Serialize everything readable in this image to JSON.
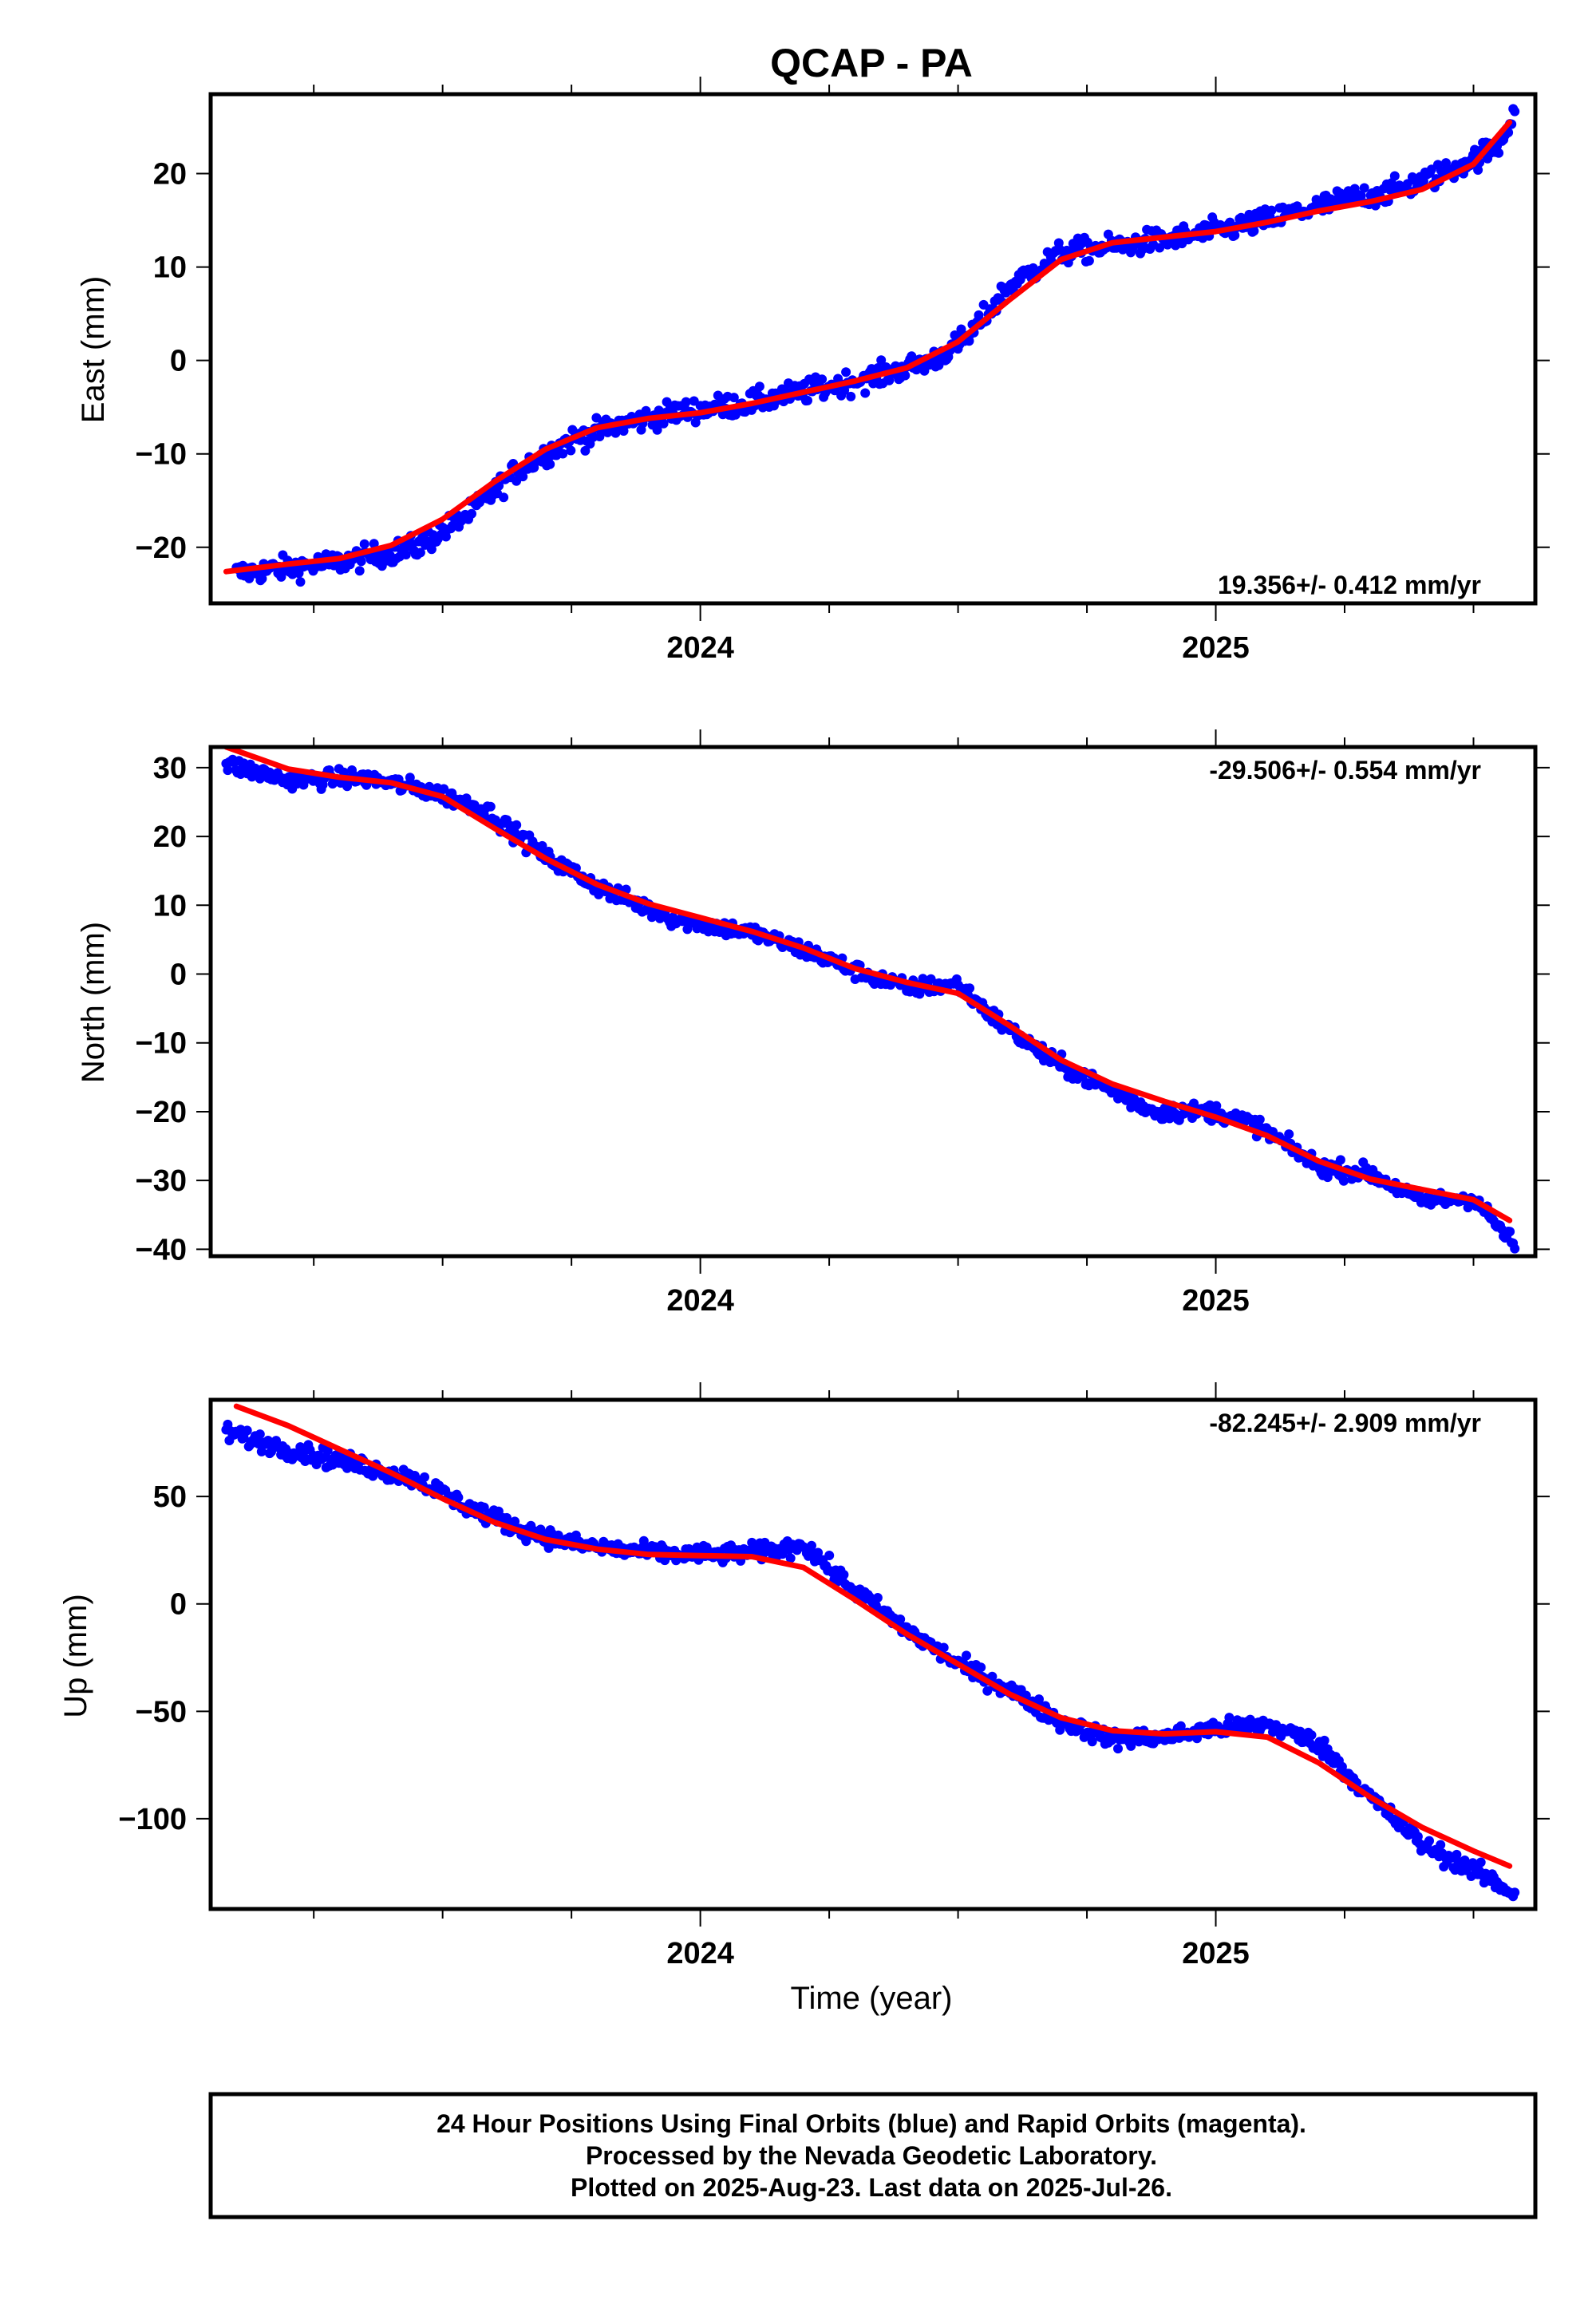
{
  "title": "QCAP - PA",
  "colors": {
    "final_orbits": "#0000ff",
    "trend": "#ff0000",
    "axes": "#000000"
  },
  "chart_data": [
    {
      "type": "scatter",
      "panel": "east",
      "ylabel": "East (mm)",
      "xlabel": "",
      "xlim": [
        2023.05,
        2025.62
      ],
      "ylim": [
        -26,
        28.5
      ],
      "x_ticks": [
        2024,
        2025
      ],
      "y_ticks": [
        -20,
        -10,
        0,
        10,
        20
      ],
      "grid": false,
      "rate_label": "19.356+/- 0.412 mm/yr",
      "rate_position": "bottom-right",
      "series": [
        {
          "name": "24 Hour Positions (final orbits)",
          "marker": "dot",
          "color": "#0000ff",
          "keypoints": [
            [
              2023.1,
              -22.8
            ],
            [
              2023.3,
              -21.6
            ],
            [
              2023.45,
              -20.0
            ],
            [
              2023.55,
              -16.5
            ],
            [
              2023.65,
              -11.5
            ],
            [
              2023.75,
              -8.5
            ],
            [
              2023.85,
              -6.8
            ],
            [
              2023.95,
              -5.6
            ],
            [
              2024.1,
              -4.5
            ],
            [
              2024.25,
              -2.8
            ],
            [
              2024.35,
              -1.6
            ],
            [
              2024.45,
              0.0
            ],
            [
              2024.52,
              2.5
            ],
            [
              2024.6,
              8.0
            ],
            [
              2024.7,
              11.5
            ],
            [
              2024.8,
              12.2
            ],
            [
              2024.95,
              13.3
            ],
            [
              2025.1,
              15.0
            ],
            [
              2025.25,
              17.2
            ],
            [
              2025.35,
              18.2
            ],
            [
              2025.45,
              20.2
            ],
            [
              2025.55,
              23.0
            ],
            [
              2025.58,
              27.0
            ]
          ],
          "noise_mm": 0.9,
          "count": 800
        },
        {
          "name": "trend",
          "type": "line",
          "color": "#ff0000",
          "points": [
            [
              2023.08,
              -22.6
            ],
            [
              2023.2,
              -21.8
            ],
            [
              2023.3,
              -21.2
            ],
            [
              2023.4,
              -19.8
            ],
            [
              2023.5,
              -17.0
            ],
            [
              2023.6,
              -13.0
            ],
            [
              2023.7,
              -9.5
            ],
            [
              2023.8,
              -7.2
            ],
            [
              2023.9,
              -6.2
            ],
            [
              2024.0,
              -5.6
            ],
            [
              2024.1,
              -4.6
            ],
            [
              2024.2,
              -3.4
            ],
            [
              2024.3,
              -2.2
            ],
            [
              2024.4,
              -0.8
            ],
            [
              2024.5,
              2.0
            ],
            [
              2024.6,
              6.5
            ],
            [
              2024.7,
              10.8
            ],
            [
              2024.8,
              12.6
            ],
            [
              2024.9,
              13.2
            ],
            [
              2025.0,
              13.8
            ],
            [
              2025.1,
              14.8
            ],
            [
              2025.2,
              16.0
            ],
            [
              2025.3,
              17.0
            ],
            [
              2025.4,
              18.3
            ],
            [
              2025.5,
              21.0
            ],
            [
              2025.57,
              25.5
            ]
          ]
        }
      ]
    },
    {
      "type": "scatter",
      "panel": "north",
      "ylabel": "North (mm)",
      "xlabel": "",
      "xlim": [
        2023.05,
        2025.62
      ],
      "ylim": [
        -41,
        33
      ],
      "x_ticks": [
        2024,
        2025
      ],
      "y_ticks": [
        -40,
        -30,
        -20,
        -10,
        0,
        10,
        20,
        30
      ],
      "grid": false,
      "rate_label": "-29.506+/- 0.554 mm/yr",
      "rate_position": "top-right",
      "series": [
        {
          "name": "24 Hour Positions (final orbits)",
          "marker": "dot",
          "color": "#0000ff",
          "keypoints": [
            [
              2023.08,
              30.5
            ],
            [
              2023.2,
              28.2
            ],
            [
              2023.35,
              28.5
            ],
            [
              2023.48,
              26.5
            ],
            [
              2023.58,
              24.0
            ],
            [
              2023.7,
              17.0
            ],
            [
              2023.82,
              12.0
            ],
            [
              2023.95,
              8.0
            ],
            [
              2024.1,
              6.0
            ],
            [
              2024.22,
              3.0
            ],
            [
              2024.3,
              0.5
            ],
            [
              2024.4,
              -2.0
            ],
            [
              2024.5,
              -1.5
            ],
            [
              2024.58,
              -7.0
            ],
            [
              2024.68,
              -12.5
            ],
            [
              2024.8,
              -17.0
            ],
            [
              2024.88,
              -20.0
            ],
            [
              2025.0,
              -20.0
            ],
            [
              2025.08,
              -22.0
            ],
            [
              2025.2,
              -28.0
            ],
            [
              2025.3,
              -29.0
            ],
            [
              2025.4,
              -33.0
            ],
            [
              2025.5,
              -32.5
            ],
            [
              2025.58,
              -39.5
            ]
          ],
          "noise_mm": 0.9,
          "count": 800
        },
        {
          "name": "trend",
          "type": "line",
          "color": "#ff0000",
          "points": [
            [
              2023.08,
              33.0
            ],
            [
              2023.2,
              29.8
            ],
            [
              2023.3,
              28.6
            ],
            [
              2023.4,
              27.8
            ],
            [
              2023.5,
              25.8
            ],
            [
              2023.6,
              21.2
            ],
            [
              2023.7,
              16.8
            ],
            [
              2023.8,
              13.0
            ],
            [
              2023.9,
              10.2
            ],
            [
              2024.0,
              8.2
            ],
            [
              2024.1,
              6.2
            ],
            [
              2024.2,
              3.8
            ],
            [
              2024.3,
              0.8
            ],
            [
              2024.4,
              -1.2
            ],
            [
              2024.5,
              -2.8
            ],
            [
              2024.6,
              -7.5
            ],
            [
              2024.7,
              -12.5
            ],
            [
              2024.8,
              -16.0
            ],
            [
              2024.9,
              -18.5
            ],
            [
              2025.0,
              -20.8
            ],
            [
              2025.1,
              -23.5
            ],
            [
              2025.2,
              -27.2
            ],
            [
              2025.3,
              -29.8
            ],
            [
              2025.4,
              -31.3
            ],
            [
              2025.5,
              -32.8
            ],
            [
              2025.57,
              -35.8
            ]
          ]
        }
      ]
    },
    {
      "type": "scatter",
      "panel": "up",
      "ylabel": "Up (mm)",
      "xlabel": "Time (year)",
      "xlim": [
        2023.05,
        2025.62
      ],
      "ylim": [
        -142,
        95
      ],
      "x_ticks": [
        2024,
        2025
      ],
      "y_ticks": [
        -100,
        -50,
        0,
        50
      ],
      "grid": false,
      "rate_label": "-82.245+/- 2.909 mm/yr",
      "rate_position": "top-right",
      "series": [
        {
          "name": "24 Hour Positions (final orbits)",
          "marker": "dot",
          "color": "#0000ff",
          "keypoints": [
            [
              2023.08,
              80.0
            ],
            [
              2023.2,
              72.0
            ],
            [
              2023.35,
              64.0
            ],
            [
              2023.45,
              58.0
            ],
            [
              2023.55,
              45.0
            ],
            [
              2023.65,
              35.0
            ],
            [
              2023.75,
              28.0
            ],
            [
              2023.85,
              25.0
            ],
            [
              2023.95,
              23.0
            ],
            [
              2024.05,
              23.0
            ],
            [
              2024.15,
              25.0
            ],
            [
              2024.2,
              28.0
            ],
            [
              2024.28,
              10.0
            ],
            [
              2024.4,
              -12.0
            ],
            [
              2024.5,
              -28.0
            ],
            [
              2024.6,
              -40.0
            ],
            [
              2024.7,
              -55.0
            ],
            [
              2024.8,
              -63.0
            ],
            [
              2024.9,
              -62.0
            ],
            [
              2025.0,
              -58.0
            ],
            [
              2025.1,
              -56.0
            ],
            [
              2025.2,
              -65.0
            ],
            [
              2025.3,
              -90.0
            ],
            [
              2025.4,
              -112.0
            ],
            [
              2025.5,
              -124.0
            ],
            [
              2025.58,
              -135.0
            ]
          ],
          "noise_mm": 3.0,
          "count": 800
        },
        {
          "name": "trend",
          "type": "line",
          "color": "#ff0000",
          "points": [
            [
              2023.1,
              92.0
            ],
            [
              2023.2,
              83.0
            ],
            [
              2023.3,
              72.0
            ],
            [
              2023.4,
              61.0
            ],
            [
              2023.5,
              49.0
            ],
            [
              2023.6,
              38.0
            ],
            [
              2023.7,
              30.0
            ],
            [
              2023.8,
              25.5
            ],
            [
              2023.9,
              23.0
            ],
            [
              2024.0,
              22.5
            ],
            [
              2024.1,
              22.0
            ],
            [
              2024.2,
              17.0
            ],
            [
              2024.3,
              2.0
            ],
            [
              2024.4,
              -14.0
            ],
            [
              2024.5,
              -28.0
            ],
            [
              2024.6,
              -42.0
            ],
            [
              2024.7,
              -53.0
            ],
            [
              2024.8,
              -59.0
            ],
            [
              2024.9,
              -60.5
            ],
            [
              2025.0,
              -59.5
            ],
            [
              2025.1,
              -62.0
            ],
            [
              2025.2,
              -74.0
            ],
            [
              2025.3,
              -90.0
            ],
            [
              2025.4,
              -104.0
            ],
            [
              2025.5,
              -115.0
            ],
            [
              2025.57,
              -122.0
            ]
          ]
        }
      ]
    }
  ],
  "note": {
    "line1": "24 Hour Positions Using Final Orbits (blue) and Rapid Orbits (magenta).",
    "line2": "Processed by the Nevada Geodetic Laboratory.",
    "line3": "Plotted on 2025-Aug-23. Last data on 2025-Jul-26."
  }
}
